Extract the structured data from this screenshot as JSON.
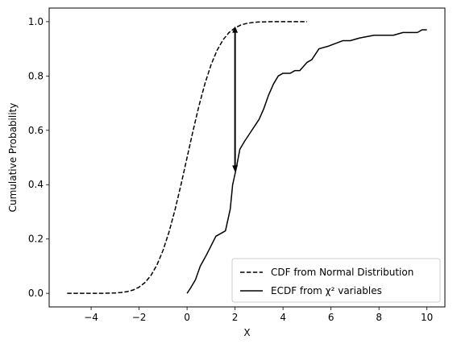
{
  "chart_data": {
    "type": "line",
    "title": "",
    "xlabel": "X",
    "ylabel": "Cumulative Probability",
    "xlim": [
      -5.75,
      10.75
    ],
    "ylim": [
      -0.05,
      1.05
    ],
    "xticks": [
      -4,
      -2,
      0,
      2,
      4,
      6,
      8,
      10
    ],
    "yticks": [
      0.0,
      0.2,
      0.4,
      0.6,
      0.8,
      1.0
    ],
    "xtick_labels": [
      "−4",
      "−2",
      "0",
      "2",
      "4",
      "6",
      "8",
      "10"
    ],
    "ytick_labels": [
      "0.0",
      "0.2",
      "0.4",
      "0.6",
      "0.8",
      "1.0"
    ],
    "grid": false,
    "legend_placement": "lower-right",
    "series": [
      {
        "name": "CDF from Normal Distribution",
        "style": "dashed",
        "color": "#000000",
        "x": [
          -5,
          -4.5,
          -4,
          -3.5,
          -3,
          -2.75,
          -2.5,
          -2.25,
          -2,
          -1.75,
          -1.5,
          -1.25,
          -1,
          -0.75,
          -0.5,
          -0.25,
          0,
          0.25,
          0.5,
          0.75,
          1,
          1.25,
          1.5,
          1.75,
          2,
          2.25,
          2.5,
          2.75,
          3,
          3.5,
          4,
          4.5,
          5
        ],
        "y": [
          0.0,
          0.0,
          0.0,
          0.0002,
          0.0013,
          0.003,
          0.0062,
          0.0122,
          0.0228,
          0.0401,
          0.0668,
          0.1056,
          0.1587,
          0.2266,
          0.3085,
          0.4013,
          0.5,
          0.5987,
          0.6915,
          0.7734,
          0.8413,
          0.8944,
          0.9332,
          0.9599,
          0.9772,
          0.9878,
          0.9938,
          0.997,
          0.9987,
          0.9998,
          1.0,
          1.0,
          1.0
        ]
      },
      {
        "name": "ECDF from χ² variables",
        "style": "solid",
        "color": "#000000",
        "x": [
          0.0,
          0.15,
          0.35,
          0.55,
          0.8,
          1.2,
          1.6,
          1.8,
          1.9,
          2.05,
          2.2,
          2.4,
          2.7,
          3.0,
          3.2,
          3.4,
          3.6,
          3.8,
          4.0,
          4.3,
          4.5,
          4.7,
          5.0,
          5.2,
          5.5,
          5.9,
          6.2,
          6.5,
          6.8,
          7.2,
          7.8,
          8.2,
          8.6,
          9.0,
          9.4,
          9.6,
          9.8,
          10.0
        ],
        "y": [
          0.0,
          0.02,
          0.05,
          0.1,
          0.14,
          0.21,
          0.23,
          0.31,
          0.4,
          0.46,
          0.53,
          0.56,
          0.6,
          0.64,
          0.68,
          0.73,
          0.77,
          0.8,
          0.81,
          0.81,
          0.82,
          0.82,
          0.85,
          0.86,
          0.9,
          0.91,
          0.92,
          0.93,
          0.93,
          0.94,
          0.95,
          0.95,
          0.95,
          0.96,
          0.96,
          0.96,
          0.97,
          0.97
        ]
      }
    ],
    "annotation": {
      "type": "double-arrow",
      "x": 2.0,
      "y_from": 0.45,
      "y_to": 0.98,
      "color": "#000000"
    }
  }
}
